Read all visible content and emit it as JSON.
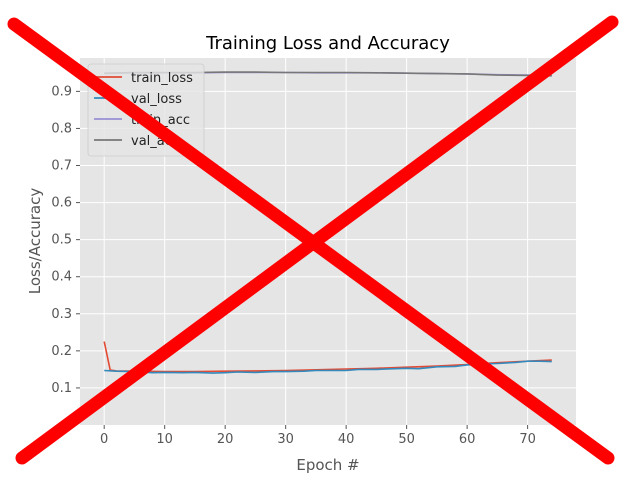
{
  "chart_data": {
    "type": "line",
    "title": "Training Loss and Accuracy",
    "xlabel": "Epoch #",
    "ylabel": "Loss/Accuracy",
    "xlim": [
      -4,
      78
    ],
    "ylim": [
      0.0,
      0.99
    ],
    "xticks": [
      0,
      10,
      20,
      30,
      40,
      50,
      60,
      70
    ],
    "yticks": [
      0.1,
      0.2,
      0.3,
      0.4,
      0.5,
      0.6,
      0.7,
      0.8,
      0.9
    ],
    "ytick_labels": [
      "0.1",
      "0.2",
      "0.3",
      "0.4",
      "0.5",
      "0.6",
      "0.7",
      "0.8",
      "0.9"
    ],
    "bottom_tick_label": "0",
    "grid": true,
    "legend_position": "top-left",
    "x": [
      0,
      5,
      10,
      15,
      20,
      25,
      30,
      35,
      40,
      45,
      50,
      55,
      60,
      65,
      70,
      74
    ],
    "series": [
      {
        "name": "train_loss",
        "color": "#e24a33",
        "x": [
          0,
          1,
          2,
          5,
          10,
          15,
          20,
          25,
          30,
          35,
          40,
          45,
          50,
          55,
          60,
          65,
          70,
          74
        ],
        "values": [
          0.225,
          0.148,
          0.146,
          0.145,
          0.144,
          0.144,
          0.145,
          0.146,
          0.147,
          0.149,
          0.151,
          0.153,
          0.156,
          0.159,
          0.163,
          0.168,
          0.172,
          0.175
        ]
      },
      {
        "name": "val_loss",
        "color": "#348abd",
        "x": [
          0,
          2,
          5,
          8,
          10,
          13,
          15,
          18,
          20,
          22,
          25,
          28,
          30,
          33,
          35,
          38,
          40,
          42,
          45,
          48,
          50,
          52,
          55,
          58,
          60,
          63,
          65,
          68,
          70,
          72,
          74
        ],
        "values": [
          0.147,
          0.145,
          0.144,
          0.141,
          0.142,
          0.141,
          0.142,
          0.14,
          0.141,
          0.143,
          0.142,
          0.144,
          0.144,
          0.145,
          0.147,
          0.147,
          0.147,
          0.15,
          0.15,
          0.152,
          0.153,
          0.152,
          0.157,
          0.158,
          0.162,
          0.165,
          0.166,
          0.169,
          0.172,
          0.172,
          0.171
        ]
      },
      {
        "name": "train_acc",
        "color": "#988ed5",
        "x": [
          0,
          5,
          10,
          15,
          20,
          25,
          30,
          35,
          40,
          45,
          50,
          55,
          60,
          65,
          70,
          74
        ],
        "values": [
          0.948,
          0.95,
          0.95,
          0.95,
          0.951,
          0.951,
          0.951,
          0.95,
          0.95,
          0.95,
          0.949,
          0.948,
          0.947,
          0.945,
          0.944,
          0.943
        ]
      },
      {
        "name": "val_acc",
        "color": "#777777",
        "x": [
          0,
          5,
          10,
          15,
          20,
          25,
          30,
          35,
          40,
          45,
          50,
          55,
          60,
          65,
          70,
          74
        ],
        "values": [
          0.949,
          0.951,
          0.951,
          0.951,
          0.952,
          0.952,
          0.951,
          0.951,
          0.951,
          0.95,
          0.949,
          0.948,
          0.947,
          0.944,
          0.943,
          0.942
        ]
      }
    ]
  },
  "overlay": {
    "color": "#ff0000"
  }
}
